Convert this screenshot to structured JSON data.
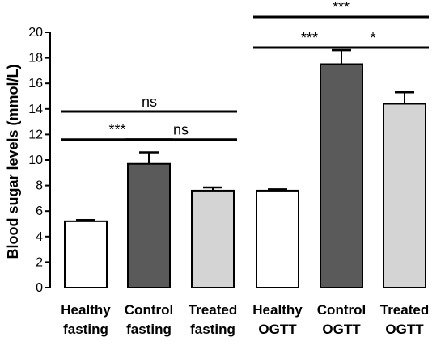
{
  "chart_data": {
    "type": "bar",
    "ylabel": "Blood sugar levels (mmol/L)",
    "ylim": [
      0,
      20
    ],
    "yticks": [
      0,
      2,
      4,
      6,
      8,
      10,
      12,
      14,
      16,
      18,
      20
    ],
    "grid": false,
    "categories": [
      {
        "line1": "Healthy",
        "line2": "fasting"
      },
      {
        "line1": "Control",
        "line2": "fasting"
      },
      {
        "line1": "Treated",
        "line2": "fasting"
      },
      {
        "line1": "Healthy",
        "line2": "OGTT"
      },
      {
        "line1": "Control",
        "line2": "OGTT"
      },
      {
        "line1": "Treated",
        "line2": "OGTT"
      }
    ],
    "values": [
      5.2,
      9.7,
      7.6,
      7.6,
      17.5,
      14.4
    ],
    "error": [
      0.1,
      0.9,
      0.25,
      0.1,
      1.1,
      0.9
    ],
    "bar_colors": [
      "#ffffff",
      "#5a5a5a",
      "#d4d4d4",
      "#ffffff",
      "#5a5a5a",
      "#d4d4d4"
    ],
    "significance": [
      {
        "from": 0,
        "to": 1,
        "label": "***",
        "y": 11.6
      },
      {
        "from": 1,
        "to": 2,
        "label": "ns",
        "y": 11.6
      },
      {
        "from": 0,
        "to": 2,
        "label": "ns",
        "y": 13.8
      },
      {
        "from": 3,
        "to": 4,
        "label": "***",
        "y": 18.8
      },
      {
        "from": 4,
        "to": 5,
        "label": "*",
        "y": 18.8
      },
      {
        "from": 3,
        "to": 5,
        "label": "***",
        "y": 21.2
      }
    ]
  }
}
